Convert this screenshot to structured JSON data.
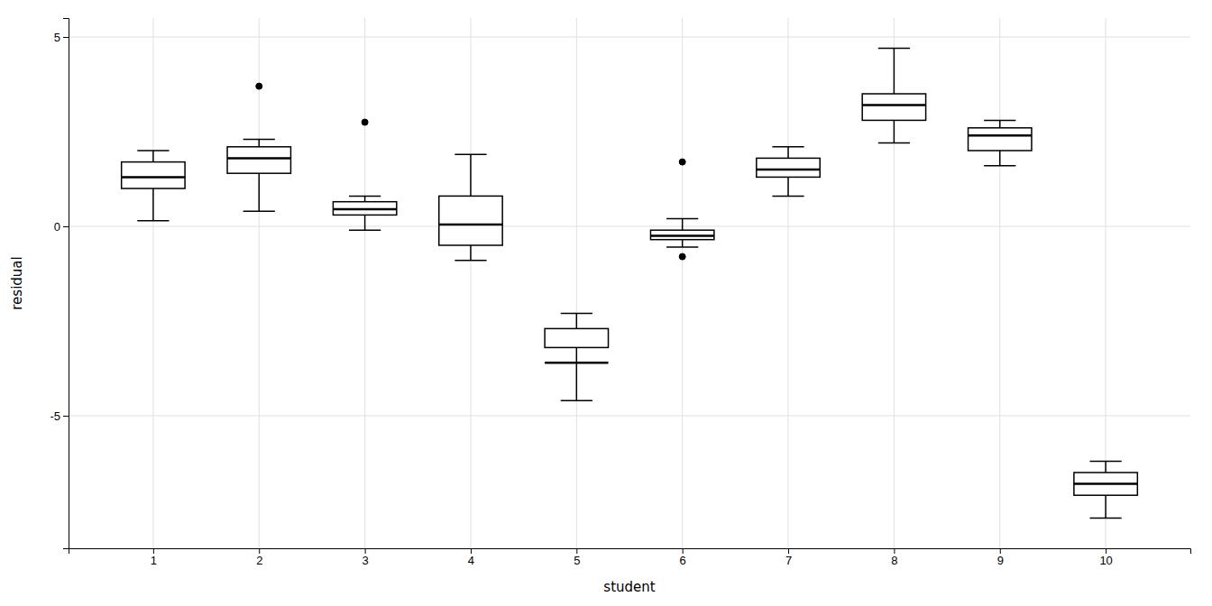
{
  "chart_data": {
    "type": "box",
    "xlabel": "student",
    "ylabel": "residual",
    "x": [
      1,
      2,
      3,
      4,
      5,
      6,
      7,
      8,
      9,
      10
    ],
    "boxes": [
      {
        "q1": 1.0,
        "median": 1.3,
        "q3": 1.7,
        "whislo": 0.15,
        "whishi": 2.0,
        "fliers": []
      },
      {
        "q1": 1.4,
        "median": 1.8,
        "q3": 2.1,
        "whislo": 0.4,
        "whishi": 2.3,
        "fliers": [
          3.7
        ]
      },
      {
        "q1": 0.3,
        "median": 0.45,
        "q3": 0.65,
        "whislo": -0.1,
        "whishi": 0.8,
        "fliers": [
          2.75
        ]
      },
      {
        "q1": -0.5,
        "median": 0.05,
        "q3": 0.8,
        "whislo": -0.9,
        "whishi": 1.9,
        "fliers": []
      },
      {
        "q1": -3.2,
        "median": -3.6,
        "q3": -2.7,
        "whislo": -4.6,
        "whishi": -2.3,
        "fliers": []
      },
      {
        "q1": -0.35,
        "median": -0.25,
        "q3": -0.1,
        "whislo": -0.55,
        "whishi": 0.2,
        "fliers": [
          1.7,
          -0.8
        ]
      },
      {
        "q1": 1.3,
        "median": 1.5,
        "q3": 1.8,
        "whislo": 0.8,
        "whishi": 2.1,
        "fliers": []
      },
      {
        "q1": 2.8,
        "median": 3.2,
        "q3": 3.5,
        "whislo": 2.2,
        "whishi": 4.7,
        "fliers": []
      },
      {
        "q1": 2.0,
        "median": 2.4,
        "q3": 2.6,
        "whislo": 1.6,
        "whishi": 2.8,
        "fliers": []
      },
      {
        "q1": -7.1,
        "median": -6.8,
        "q3": -6.5,
        "whislo": -7.7,
        "whishi": -6.2,
        "fliers": []
      }
    ],
    "xlim": [
      0.2,
      10.8
    ],
    "xticks": [
      1,
      2,
      3,
      4,
      5,
      6,
      7,
      8,
      9,
      10
    ],
    "ylim": [
      -8.5,
      5.5
    ],
    "yticks": [
      -5,
      0,
      5
    ],
    "grid": true,
    "color": "#000000"
  }
}
